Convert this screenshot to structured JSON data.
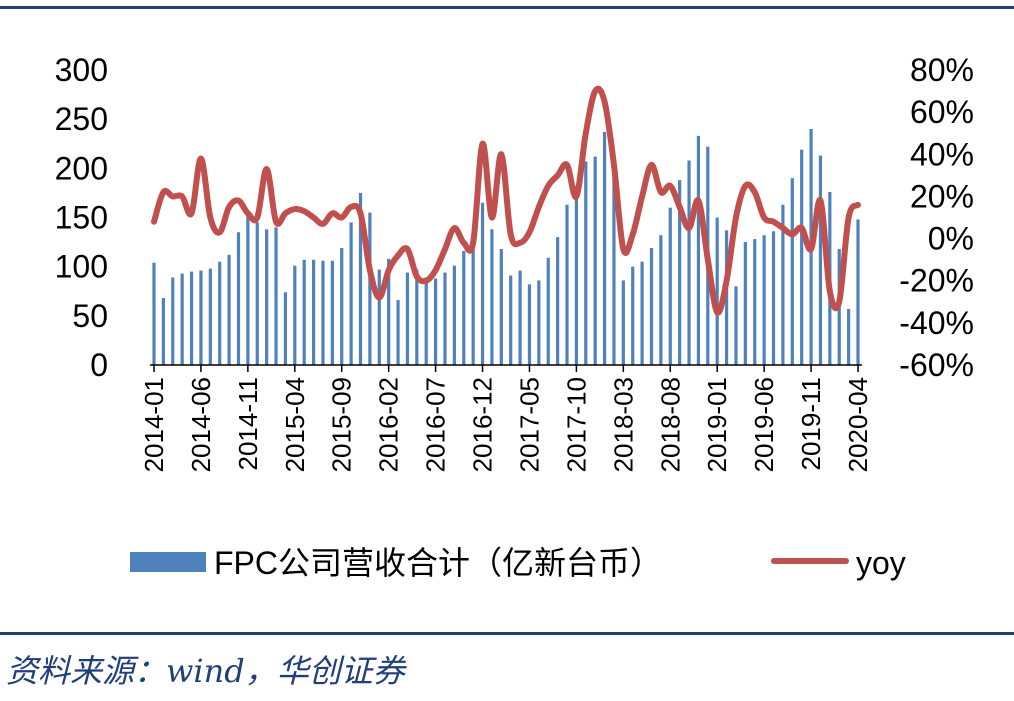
{
  "source_note": "资料来源：wind，华创证券",
  "colors": {
    "bar": "#4f81bd",
    "line": "#c0504d",
    "rule": "#1f3e7a"
  },
  "chart_data": {
    "type": "bar+line",
    "title": "",
    "x": [
      "2014-01",
      "2014-02",
      "2014-03",
      "2014-04",
      "2014-05",
      "2014-06",
      "2014-07",
      "2014-08",
      "2014-09",
      "2014-10",
      "2014-11",
      "2014-12",
      "2015-01",
      "2015-02",
      "2015-03",
      "2015-04",
      "2015-05",
      "2015-06",
      "2015-07",
      "2015-08",
      "2015-09",
      "2015-10",
      "2015-11",
      "2015-12",
      "2016-01",
      "2016-02",
      "2016-03",
      "2016-04",
      "2016-05",
      "2016-06",
      "2016-07",
      "2016-08",
      "2016-09",
      "2016-10",
      "2016-11",
      "2016-12",
      "2017-01",
      "2017-02",
      "2017-03",
      "2017-04",
      "2017-05",
      "2017-06",
      "2017-07",
      "2017-08",
      "2017-09",
      "2017-10",
      "2017-11",
      "2017-12",
      "2018-01",
      "2018-02",
      "2018-03",
      "2018-04",
      "2018-05",
      "2018-06",
      "2018-07",
      "2018-08",
      "2018-09",
      "2018-10",
      "2018-11",
      "2018-12",
      "2019-01",
      "2019-02",
      "2019-03",
      "2019-04",
      "2019-05",
      "2019-06",
      "2019-07",
      "2019-08",
      "2019-09",
      "2019-10",
      "2019-11",
      "2019-12",
      "2020-01",
      "2020-02",
      "2020-03",
      "2020-04"
    ],
    "x_tick_labels": [
      "2014-01",
      "2014-06",
      "2014-11",
      "2015-04",
      "2015-09",
      "2016-02",
      "2016-07",
      "2016-12",
      "2017-05",
      "2017-10",
      "2018-03",
      "2018-08",
      "2019-01",
      "2019-06",
      "2019-11",
      "2020-04"
    ],
    "series": [
      {
        "name": "FPC公司营收合计（亿新台币）",
        "type": "bar",
        "axis": "left",
        "values": [
          104,
          68,
          89,
          93,
          95,
          96,
          98,
          105,
          112,
          135,
          152,
          145,
          138,
          140,
          74,
          101,
          107,
          107,
          106,
          106,
          119,
          145,
          175,
          155,
          97,
          108,
          66,
          94,
          97,
          89,
          88,
          94,
          101,
          116,
          130,
          165,
          138,
          118,
          91,
          96,
          82,
          86,
          109,
          130,
          163,
          182,
          207,
          212,
          237,
          192,
          86,
          100,
          105,
          119,
          132,
          160,
          188,
          208,
          233,
          222,
          150,
          137,
          80,
          125,
          128,
          132,
          136,
          163,
          190,
          219,
          240,
          213,
          176,
          118,
          57,
          148
        ]
      },
      {
        "name": "yoy",
        "type": "line",
        "axis": "right",
        "values": [
          8,
          22,
          20,
          20,
          12,
          38,
          10,
          3,
          15,
          18,
          12,
          10,
          33,
          8,
          12,
          14,
          13,
          10,
          7,
          12,
          10,
          15,
          12,
          -15,
          -28,
          -15,
          -8,
          -5,
          -18,
          -20,
          -15,
          -5,
          5,
          -2,
          -2,
          45,
          10,
          40,
          2,
          -2,
          3,
          15,
          25,
          30,
          35,
          20,
          50,
          70,
          65,
          35,
          -5,
          2,
          20,
          35,
          22,
          25,
          15,
          5,
          18,
          -10,
          -35,
          -20,
          10,
          25,
          22,
          10,
          8,
          5,
          2,
          5,
          -5,
          18,
          -25,
          -30,
          10,
          16
        ]
      }
    ],
    "y_left": {
      "ylim": [
        0,
        300
      ],
      "ticks": [
        "300",
        "250",
        "200",
        "150",
        "100",
        "50",
        "0"
      ]
    },
    "y_right": {
      "ylim": [
        -60,
        80
      ],
      "ticks": [
        "80%",
        "60%",
        "40%",
        "20%",
        "0%",
        "-20%",
        "-40%",
        "-60%"
      ]
    },
    "legend": {
      "position": "bottom",
      "entries": [
        "FPC公司营收合计（亿新台币）",
        "yoy"
      ]
    },
    "grid": false
  }
}
